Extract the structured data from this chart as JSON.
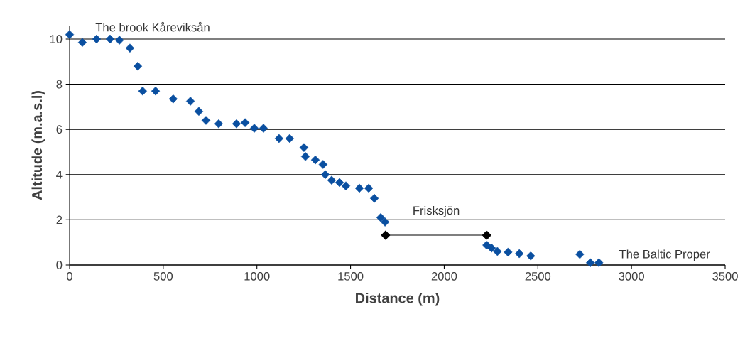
{
  "chart_data": {
    "type": "scatter",
    "xlabel": "Distance (m)",
    "ylabel": "Altitude (m.a.s.l)",
    "xlim": [
      0,
      3500
    ],
    "xticks": [
      0,
      500,
      1000,
      1500,
      2000,
      2500,
      3000,
      3500
    ],
    "ylim": [
      0,
      10.6
    ],
    "yticks": [
      0,
      2,
      4,
      6,
      8,
      10
    ],
    "grid": "y",
    "marker": "diamond",
    "line_style": "solid",
    "series": [
      {
        "color": "#0a4fa0",
        "x": [
          0,
          68,
          144,
          216,
          266,
          322,
          364,
          390,
          459,
          553,
          645,
          690,
          728,
          796,
          891,
          937,
          986,
          1035,
          1118,
          1175,
          1251,
          1259,
          1312,
          1353,
          1365,
          1399,
          1441,
          1475,
          1547,
          1597,
          1627,
          1661,
          1684,
          2227,
          2253,
          2284,
          2341,
          2401,
          2462,
          2724,
          2780,
          2826
        ],
        "values": [
          10.2,
          9.85,
          10.0,
          10.0,
          9.95,
          9.6,
          8.8,
          7.7,
          7.7,
          7.35,
          7.25,
          6.8,
          6.4,
          6.25,
          6.25,
          6.3,
          6.05,
          6.05,
          5.6,
          5.6,
          5.2,
          4.8,
          4.65,
          4.45,
          4.0,
          3.75,
          3.65,
          3.5,
          3.4,
          3.4,
          2.95,
          2.1,
          1.9,
          0.88,
          0.75,
          0.6,
          0.57,
          0.5,
          0.4,
          0.47,
          0.1,
          0.1
        ]
      },
      {
        "type": "line",
        "color": "#000000",
        "x": [
          1687,
          2227
        ],
        "values": [
          1.32,
          1.32
        ]
      }
    ],
    "annotations": [
      {
        "text": "The brook Kåreviksån",
        "x": 0,
        "y": 10.2
      },
      {
        "text": "Frisksjön",
        "x": 1957,
        "y": 1.32
      },
      {
        "text": "The Baltic Proper",
        "x": 2826,
        "y": 0.1
      }
    ]
  }
}
